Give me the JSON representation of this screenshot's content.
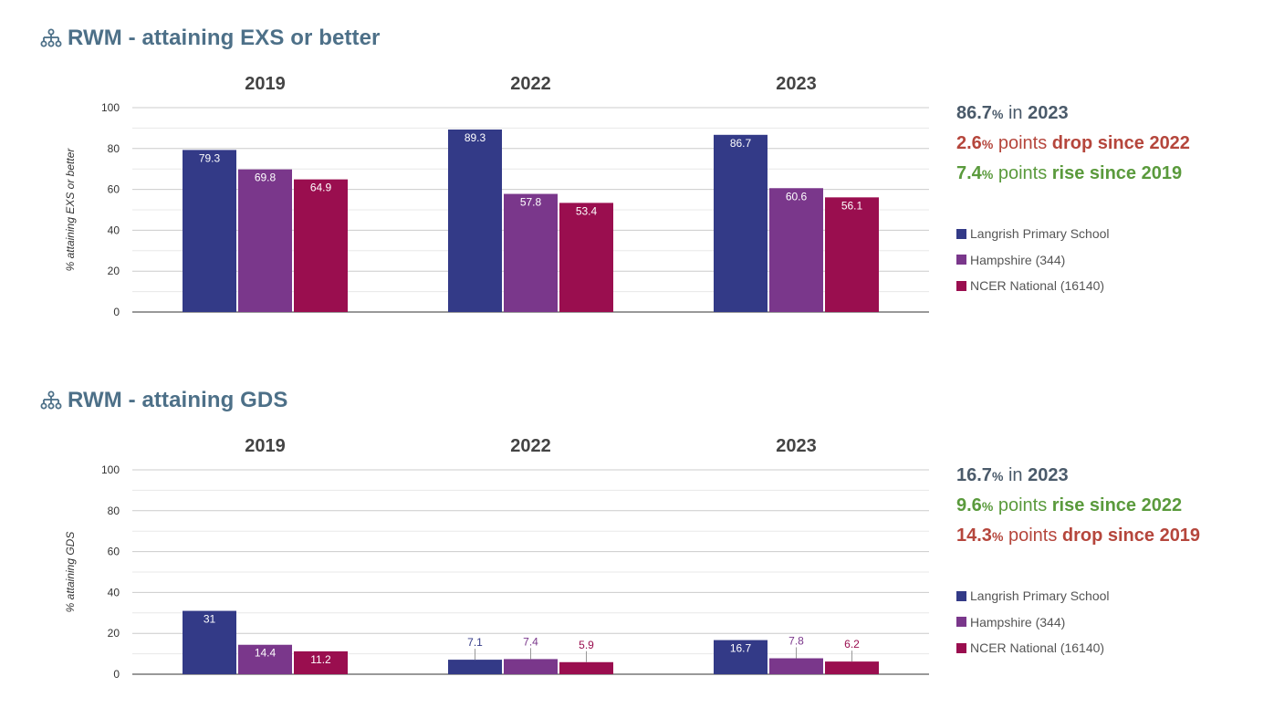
{
  "colors": {
    "school": "#333a87",
    "hampshire": "#7a378b",
    "national": "#9a0e4f",
    "title": "#4d7088",
    "drop": "#b5463c",
    "rise": "#5a9a3c",
    "neutral": "#4a5a6a"
  },
  "legend": [
    {
      "label": "Langrish Primary School",
      "color": "#333a87"
    },
    {
      "label": "Hampshire (344)",
      "color": "#7a378b"
    },
    {
      "label": "NCER National (16140)",
      "color": "#9a0e4f"
    }
  ],
  "chart_data": [
    {
      "type": "bar",
      "title": "RWM - attaining EXS or better",
      "icon": "hierarchy-icon",
      "ylabel": "% attaining EXS or better",
      "ylim": [
        0,
        100
      ],
      "yticks": [
        0,
        20,
        40,
        60,
        80,
        100
      ],
      "grid": true,
      "categories": [
        "2019",
        "2022",
        "2023"
      ],
      "series": [
        {
          "name": "Langrish Primary School",
          "values": [
            79.3,
            89.3,
            86.7
          ]
        },
        {
          "name": "Hampshire (344)",
          "values": [
            69.8,
            57.8,
            60.6
          ]
        },
        {
          "name": "NCER National (16140)",
          "values": [
            64.9,
            53.4,
            56.1
          ]
        }
      ],
      "summary": {
        "current": {
          "value": "86.7",
          "pct": "%",
          "text": " in ",
          "year": "2023"
        },
        "vs_prev": {
          "value": "2.6",
          "pct": "%",
          "text": " points ",
          "label": "drop since 2022",
          "trend": "drop"
        },
        "vs_base": {
          "value": "7.4",
          "pct": "%",
          "text": " points ",
          "label": "rise since 2019",
          "trend": "rise"
        }
      }
    },
    {
      "type": "bar",
      "title": "RWM - attaining GDS",
      "icon": "hierarchy-icon",
      "ylabel": "% attaining GDS",
      "ylim": [
        0,
        100
      ],
      "yticks": [
        0,
        20,
        40,
        60,
        80,
        100
      ],
      "grid": true,
      "categories": [
        "2019",
        "2022",
        "2023"
      ],
      "series": [
        {
          "name": "Langrish Primary School",
          "values": [
            31,
            7.1,
            16.7
          ]
        },
        {
          "name": "Hampshire (344)",
          "values": [
            14.4,
            7.4,
            7.8
          ]
        },
        {
          "name": "NCER National (16140)",
          "values": [
            11.2,
            5.9,
            6.2
          ]
        }
      ],
      "summary": {
        "current": {
          "value": "16.7",
          "pct": "%",
          "text": " in ",
          "year": "2023"
        },
        "vs_prev": {
          "value": "9.6",
          "pct": "%",
          "text": " points ",
          "label": "rise since 2022",
          "trend": "rise"
        },
        "vs_base": {
          "value": "14.3",
          "pct": "%",
          "text": " points ",
          "label": "drop since 2019",
          "trend": "drop"
        }
      }
    }
  ]
}
